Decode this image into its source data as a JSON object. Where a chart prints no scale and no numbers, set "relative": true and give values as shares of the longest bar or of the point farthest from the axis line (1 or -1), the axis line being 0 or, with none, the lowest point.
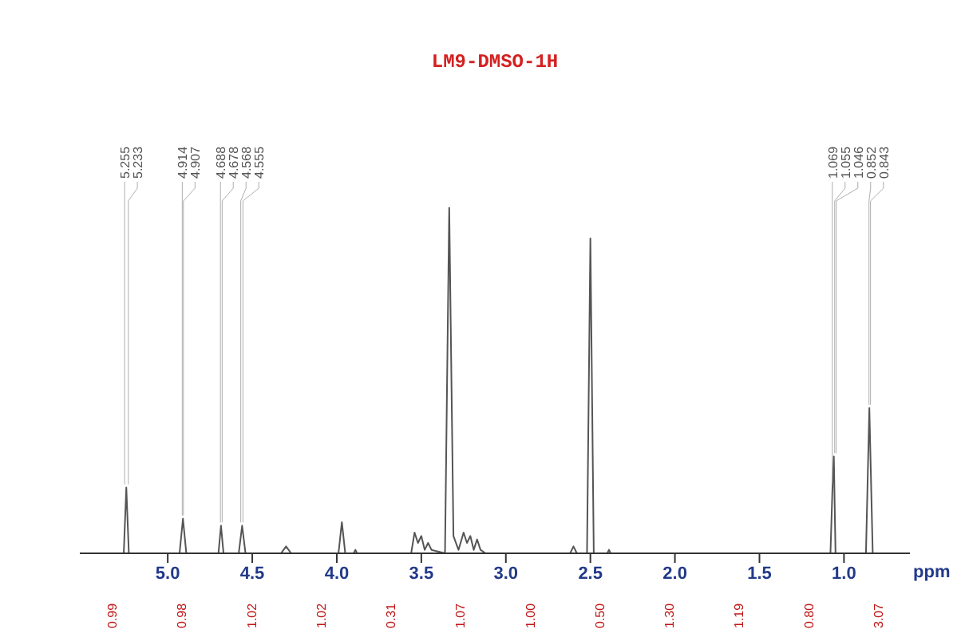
{
  "chart_data": {
    "type": "line",
    "title": "LM9-DMSO-1H",
    "xlabel": "ppm",
    "relative": true,
    "marker": "none",
    "xlim": [
      5.52,
      0.61
    ],
    "xticks": [
      {
        "value": 5,
        "label": "5.0"
      },
      {
        "value": 4.5,
        "label": "4.5"
      },
      {
        "value": 4,
        "label": "4.0"
      },
      {
        "value": 3.5,
        "label": "3.5"
      },
      {
        "value": 3,
        "label": "3.0"
      },
      {
        "value": 2.5,
        "label": "2.5"
      },
      {
        "value": 2,
        "label": "2.0"
      },
      {
        "value": 1.5,
        "label": "1.5"
      },
      {
        "value": 1,
        "label": "1.0"
      }
    ],
    "series": [
      {
        "color": "#555555",
        "x": [
          5.52,
          5.26,
          5.245,
          5.23,
          4.93,
          4.91,
          4.89,
          4.7,
          4.685,
          4.67,
          4.58,
          4.56,
          4.54,
          4.33,
          4.3,
          4.27,
          3.99,
          3.97,
          3.95,
          3.9,
          3.89,
          3.88,
          3.56,
          3.54,
          3.52,
          3.5,
          3.48,
          3.46,
          3.44,
          3.36,
          3.335,
          3.31,
          3.28,
          3.25,
          3.23,
          3.21,
          3.19,
          3.17,
          3.15,
          3.12,
          2.62,
          2.6,
          2.58,
          2.52,
          2.5,
          2.48,
          2.4,
          2.39,
          2.38,
          1.08,
          1.068,
          1.06,
          1.05,
          0.87,
          0.85,
          0.83,
          0.61
        ],
        "values": [
          0,
          0,
          0.19,
          0,
          0,
          0.1,
          0,
          0,
          0.08,
          0,
          0,
          0.08,
          0,
          0,
          0.02,
          0,
          0,
          0.09,
          0,
          0,
          0.01,
          0,
          0,
          0.06,
          0.03,
          0.05,
          0.01,
          0.03,
          0.01,
          0,
          1,
          0.05,
          0.01,
          0.06,
          0.03,
          0.05,
          0.01,
          0.04,
          0.01,
          0,
          0,
          0.02,
          0,
          0,
          0.91,
          0,
          0,
          0.01,
          0,
          0,
          0.19,
          0.28,
          0,
          0,
          0.42,
          0,
          0
        ]
      }
    ],
    "annotations": [
      {
        "text": "5.255",
        "x": 5.255,
        "y": 0.19
      },
      {
        "text": "5.233",
        "x": 5.233,
        "y": 0.19
      },
      {
        "text": "4.914",
        "x": 4.914,
        "y": 0.1
      },
      {
        "text": "4.907",
        "x": 4.907,
        "y": 0.1
      },
      {
        "text": "4.688",
        "x": 4.688,
        "y": 0.08
      },
      {
        "text": "4.678",
        "x": 4.678,
        "y": 0.08
      },
      {
        "text": "4.568",
        "x": 4.568,
        "y": 0.08
      },
      {
        "text": "4.555",
        "x": 4.555,
        "y": 0.08
      },
      {
        "text": "1.069",
        "x": 1.069,
        "y": 0.19
      },
      {
        "text": "1.055",
        "x": 1.055,
        "y": 0.28
      },
      {
        "text": "1.046",
        "x": 1.046,
        "y": 0.28
      },
      {
        "text": "0.852",
        "x": 0.852,
        "y": 0.42
      },
      {
        "text": "0.843",
        "x": 0.843,
        "y": 0.42
      },
      "0.99",
      "0.98",
      "1.02",
      "1.02",
      "0.31",
      "1.07",
      "1.00",
      "0.50",
      "1.30",
      "1.19",
      "0.80",
      "3.07"
    ]
  }
}
